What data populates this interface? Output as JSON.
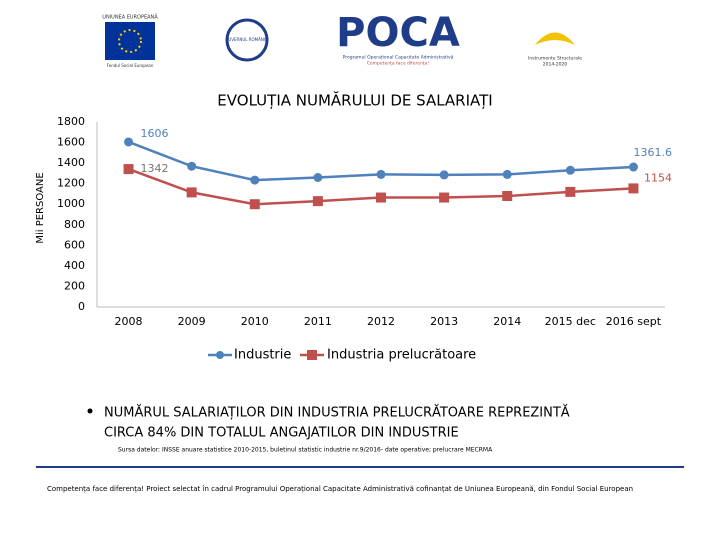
{
  "header": {
    "eu": [
      "UNIUNEA EUROPEANĂ",
      "Fondul Social European"
    ],
    "gov": "GUVERNUL ROMÂNIEI",
    "poca": "POCA",
    "poca_sub": [
      "Programul Operațional Capacitate Administrativă",
      "Competența face diferența!"
    ],
    "is": [
      "Instrumente Structurale",
      "2014-2020"
    ]
  },
  "chart_data": {
    "type": "line",
    "title": "EVOLUȚIA NUMĂRULUI DE SALARIAȚI",
    "y_label": "Mii PERSOANE",
    "categories": [
      "2008",
      "2009",
      "2010",
      "2011",
      "2012",
      "2013",
      "2014",
      "2015 dec",
      "2016 sept"
    ],
    "series": [
      {
        "name": "Industrie",
        "color": "#4f81bd",
        "values": [
          1606,
          1370,
          1235,
          1260,
          1290,
          1285,
          1290,
          1330,
          1361.6
        ]
      },
      {
        "name": "Industria prelucrătoare",
        "color": "#c0504d",
        "values": [
          1342,
          1115,
          1000,
          1030,
          1065,
          1065,
          1080,
          1120,
          1154
        ]
      }
    ],
    "ylim": [
      0,
      1800
    ],
    "yticks": [
      0,
      200,
      400,
      600,
      800,
      1000,
      1200,
      1400,
      1600,
      1800
    ],
    "legend": "bottom"
  },
  "bullet": [
    "NUMĂRUL SALARIAȚILOR DIN INDUSTRIA PRELUCRĂTOARE REPREZINTĂ",
    "CIRCA  84% DIN TOTALUL ANGAJATILOR DIN INDUSTRIE"
  ],
  "source": "Sursa datelor: INSSE anuare statistice 2010-2015, buletinul statistic industrie nr.9/2016- date operative; prelucrare MECRMA",
  "footer": "Competența face diferența! Proiect selectat în cadrul Programului Operațional Capacitate Administrativă cofinanțat de Uniunea Europeană, din Fondul Social European"
}
